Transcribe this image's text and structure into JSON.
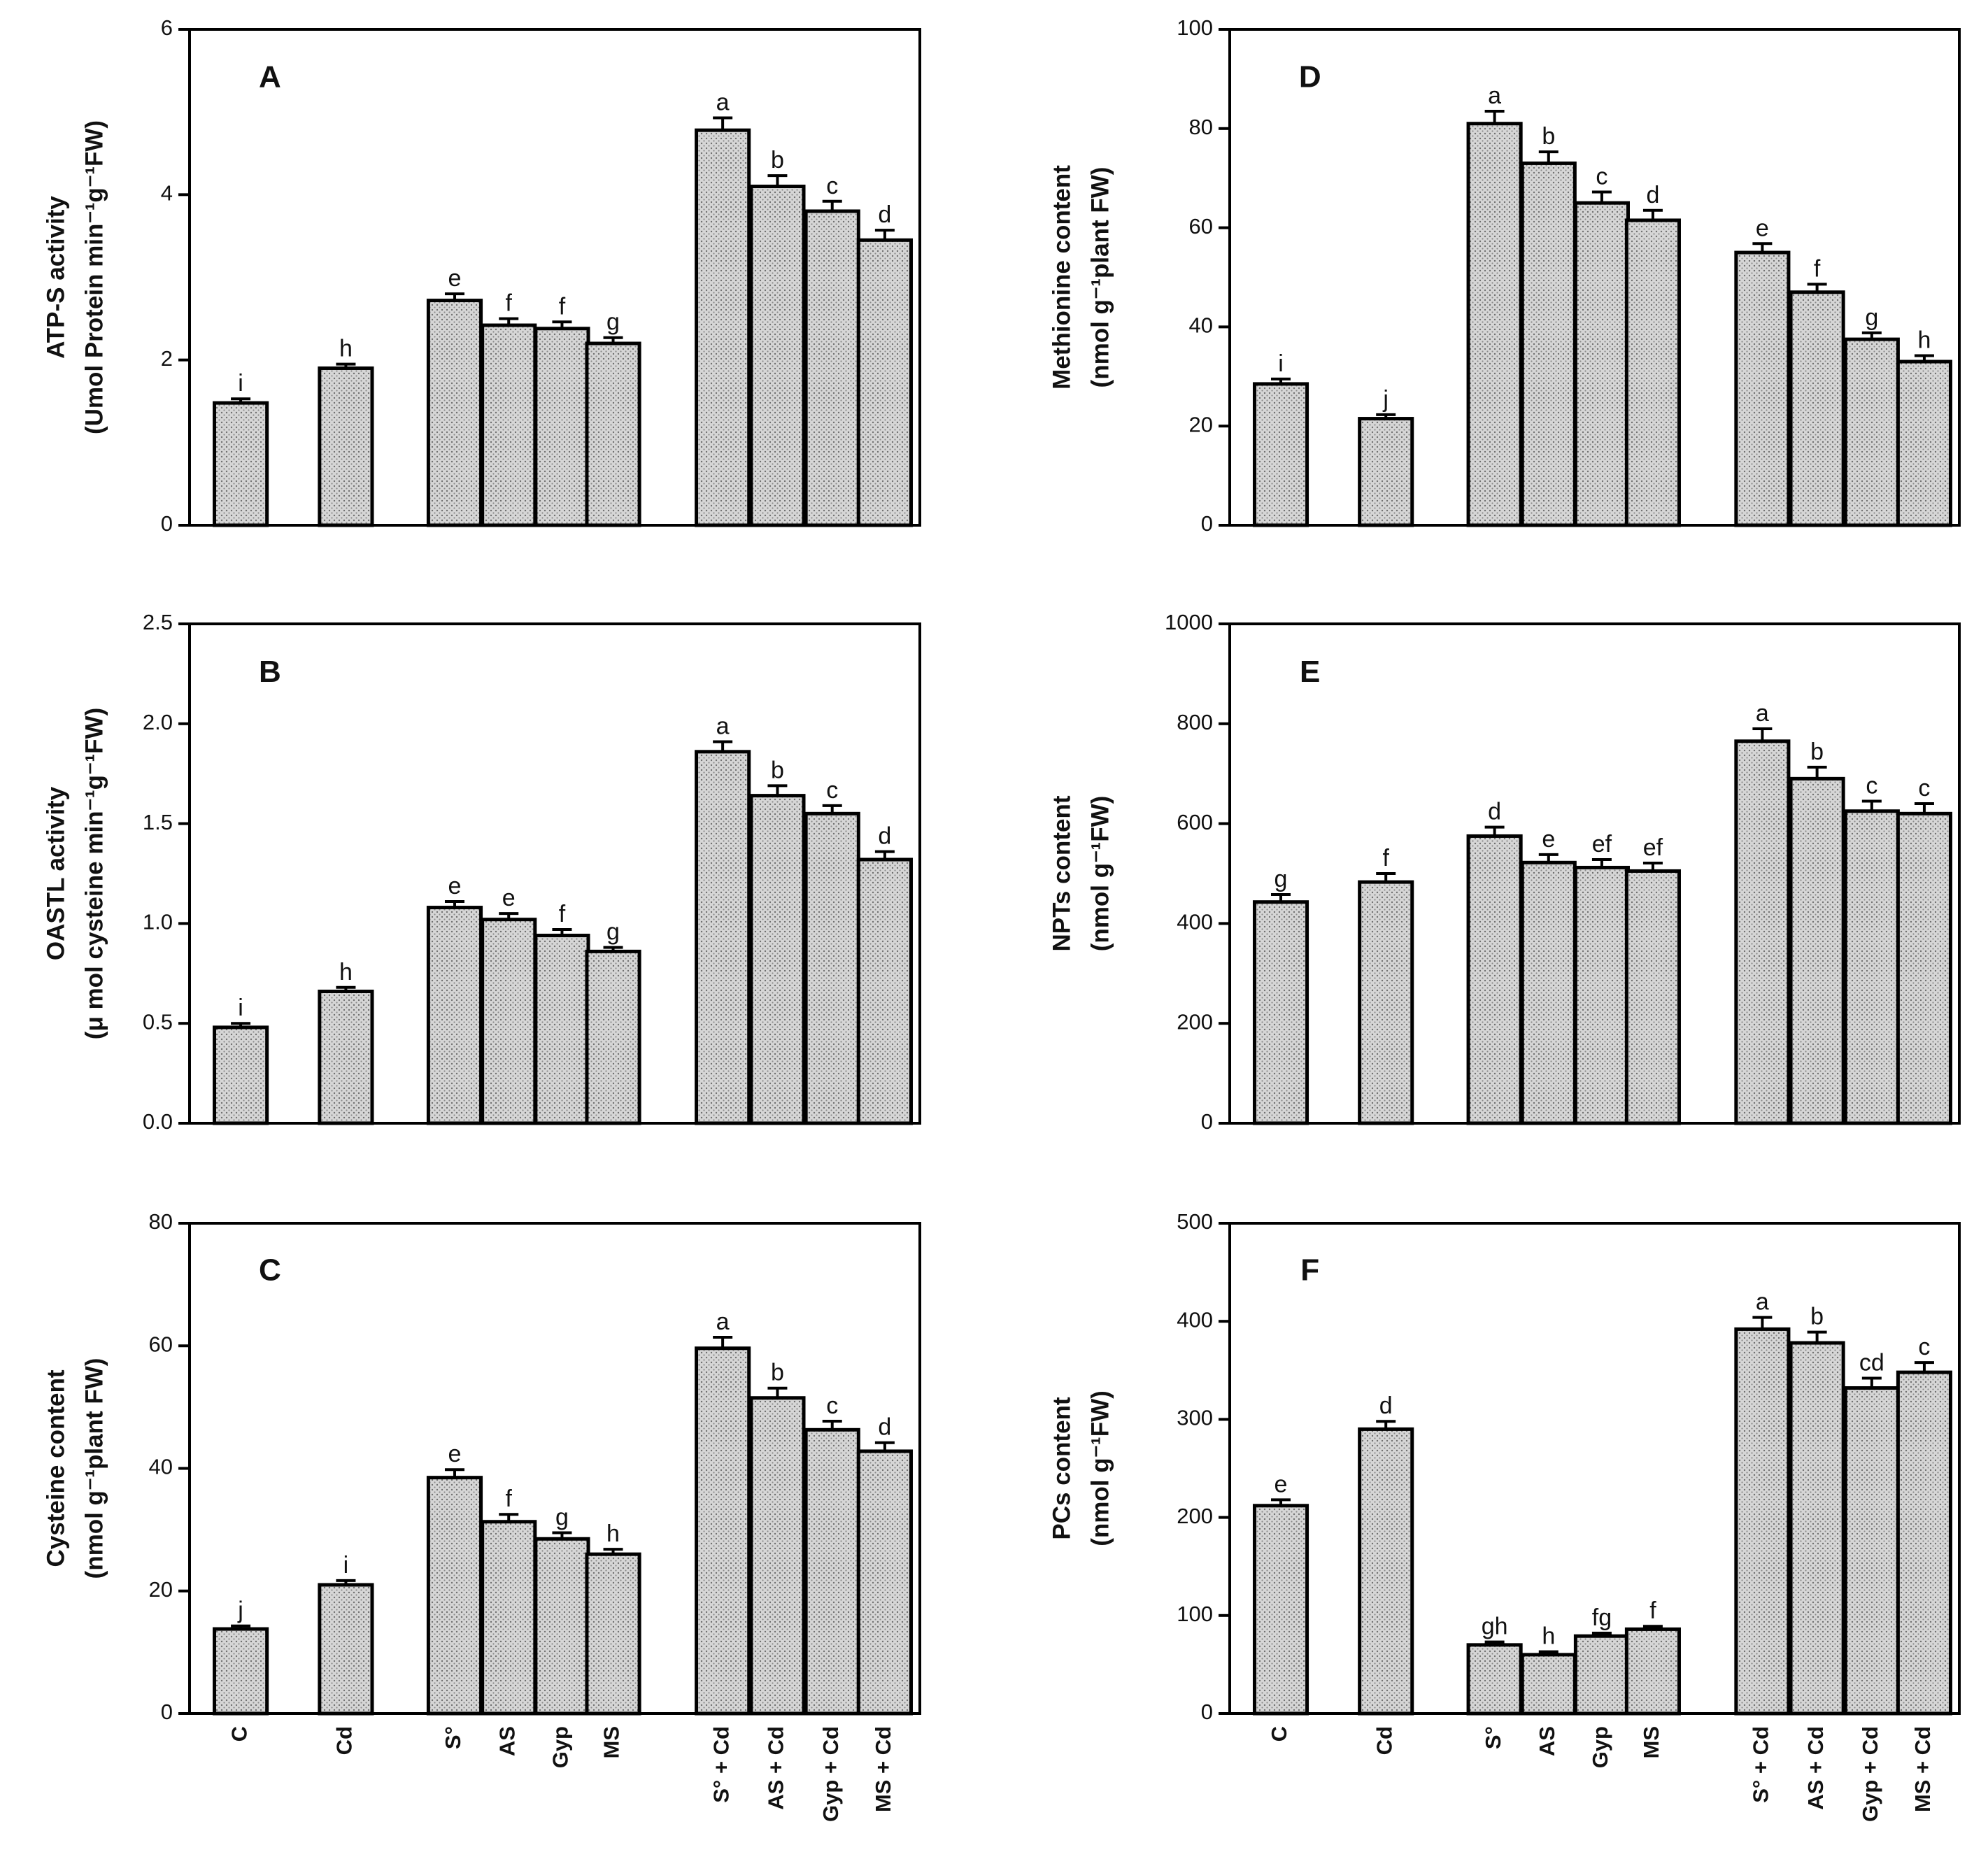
{
  "chart_data": [
    {
      "type": "bar",
      "title": "A",
      "ylabel": [
        "ATP-S activity",
        "(Umol Protein min⁻¹g⁻¹FW)"
      ],
      "categories": [
        null,
        null,
        null,
        null,
        null,
        null,
        null,
        null,
        null,
        null
      ],
      "values": [
        1.48,
        1.9,
        2.72,
        2.42,
        2.38,
        2.2,
        4.78,
        4.1,
        3.8,
        3.45
      ],
      "errors": [
        0.05,
        0.05,
        0.08,
        0.08,
        0.08,
        0.07,
        0.15,
        0.13,
        0.12,
        0.12
      ],
      "letters": [
        "i",
        "h",
        "e",
        "f",
        "f",
        "g",
        "a",
        "b",
        "c",
        "d"
      ],
      "color": "#c9c9c9",
      "ylim": [
        0,
        6
      ],
      "yticks": [
        0,
        2,
        4,
        6
      ]
    },
    {
      "type": "bar",
      "title": "B",
      "ylabel": [
        "OASTL activity",
        "(μ mol cysteine min⁻¹g⁻¹FW)"
      ],
      "categories": [
        null,
        null,
        null,
        null,
        null,
        null,
        null,
        null,
        null,
        null
      ],
      "values": [
        0.48,
        0.66,
        1.08,
        1.02,
        0.94,
        0.86,
        1.86,
        1.64,
        1.55,
        1.32
      ],
      "errors": [
        0.02,
        0.02,
        0.03,
        0.03,
        0.03,
        0.02,
        0.05,
        0.05,
        0.04,
        0.04
      ],
      "letters": [
        "i",
        "h",
        "e",
        "e",
        "f",
        "g",
        "a",
        "b",
        "c",
        "d"
      ],
      "color": "#c9c9c9",
      "ylim": [
        0,
        2.5
      ],
      "yticks": [
        {
          "value": 0,
          "label": "0.0"
        },
        0.5,
        {
          "value": 1,
          "label": "1.0"
        },
        1.5,
        {
          "value": 2,
          "label": "2.0"
        },
        2.5
      ]
    },
    {
      "type": "bar",
      "title": "C",
      "ylabel": [
        "Cysteine content",
        "(nmol g⁻¹plant FW)"
      ],
      "categories": [
        "C",
        "Cd",
        "S°",
        "AS",
        "Gyp",
        "MS",
        "S° + Cd",
        "AS + Cd",
        "Gyp + Cd",
        "MS + Cd"
      ],
      "values": [
        13.8,
        21,
        38.5,
        31.3,
        28.5,
        26,
        59.6,
        51.5,
        46.3,
        42.8
      ],
      "errors": [
        0.5,
        0.7,
        1.3,
        1.2,
        1,
        0.8,
        1.8,
        1.6,
        1.4,
        1.4
      ],
      "letters": [
        "j",
        "i",
        "e",
        "f",
        "g",
        "h",
        "a",
        "b",
        "c",
        "d"
      ],
      "color": "#c9c9c9",
      "ylim": [
        0,
        80
      ],
      "yticks": [
        0,
        20,
        40,
        60,
        80
      ]
    },
    {
      "type": "bar",
      "title": "D",
      "ylabel": [
        "Methionine content",
        "(nmol g⁻¹plant  FW)"
      ],
      "categories": [
        null,
        null,
        null,
        null,
        null,
        null,
        null,
        null,
        null,
        null
      ],
      "values": [
        28.5,
        21.5,
        81,
        73,
        65,
        61.5,
        55,
        47,
        37.5,
        33
      ],
      "errors": [
        1,
        0.8,
        2.5,
        2.3,
        2.2,
        2,
        1.8,
        1.6,
        1.3,
        1.2
      ],
      "letters": [
        "i",
        "j",
        "a",
        "b",
        "c",
        "d",
        "e",
        "f",
        "g",
        "h"
      ],
      "color": "#c9c9c9",
      "ylim": [
        0,
        100
      ],
      "yticks": [
        0,
        20,
        40,
        60,
        80,
        100
      ]
    },
    {
      "type": "bar",
      "title": "E",
      "ylabel": [
        "NPTs  content",
        "(nmol g⁻¹FW)"
      ],
      "categories": [
        null,
        null,
        null,
        null,
        null,
        null,
        null,
        null,
        null,
        null
      ],
      "values": [
        443,
        483,
        575,
        522,
        512,
        505,
        765,
        690,
        625,
        620
      ],
      "errors": [
        15,
        17,
        18,
        16,
        16,
        16,
        25,
        23,
        20,
        20
      ],
      "letters": [
        "g",
        "f",
        "d",
        "e",
        "ef",
        "ef",
        "a",
        "b",
        "c",
        "c"
      ],
      "color": "#c9c9c9",
      "ylim": [
        0,
        1000
      ],
      "yticks": [
        0,
        200,
        400,
        600,
        800,
        1000
      ]
    },
    {
      "type": "bar",
      "title": "F",
      "ylabel": [
        "PCs content",
        "(nmol  g⁻¹FW)"
      ],
      "categories": [
        "C",
        "Cd",
        "S°",
        "AS",
        "Gyp",
        "MS",
        "S° + Cd",
        "AS + Cd",
        "Gyp + Cd",
        "MS + Cd"
      ],
      "values": [
        212,
        290,
        70,
        60,
        79,
        86,
        392,
        378,
        332,
        348
      ],
      "errors": [
        6,
        8,
        3,
        3,
        3,
        3,
        12,
        11,
        10,
        10
      ],
      "letters": [
        "e",
        "d",
        "gh",
        "h",
        "fg",
        "f",
        "a",
        "b",
        "cd",
        "c"
      ],
      "color": "#c9c9c9",
      "ylim": [
        0,
        500
      ],
      "yticks": [
        0,
        100,
        200,
        300,
        400,
        500
      ]
    }
  ]
}
